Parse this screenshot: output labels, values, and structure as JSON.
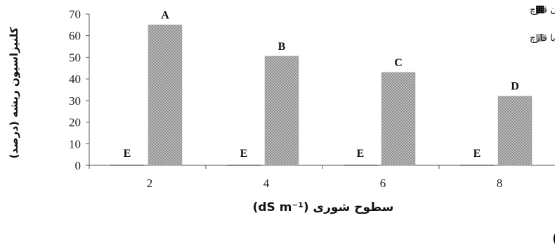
{
  "chart_data": {
    "type": "bar",
    "categories": [
      "2",
      "4",
      "6",
      "8"
    ],
    "series": [
      {
        "name": "بدون قارچ",
        "values": [
          0,
          0,
          0,
          0
        ],
        "labels": [
          "E",
          "E",
          "E",
          "E"
        ],
        "fill": "#1a1a1a"
      },
      {
        "name": "با قارچ",
        "values": [
          65,
          50.5,
          43,
          32
        ],
        "labels": [
          "A",
          "B",
          "C",
          "D"
        ],
        "fill": "#b8b8b8"
      }
    ],
    "ylabel": "کلنیزاسیون ریشه (درصد)",
    "xlabel": "سطوح شوری (dS m⁻¹)",
    "ylim": [
      0,
      70
    ],
    "yticks": [
      "0",
      "10",
      "20",
      "30",
      "40",
      "50",
      "60",
      "70"
    ],
    "legend_position": "top-right",
    "grid": false
  },
  "panel_label": "(الف)"
}
